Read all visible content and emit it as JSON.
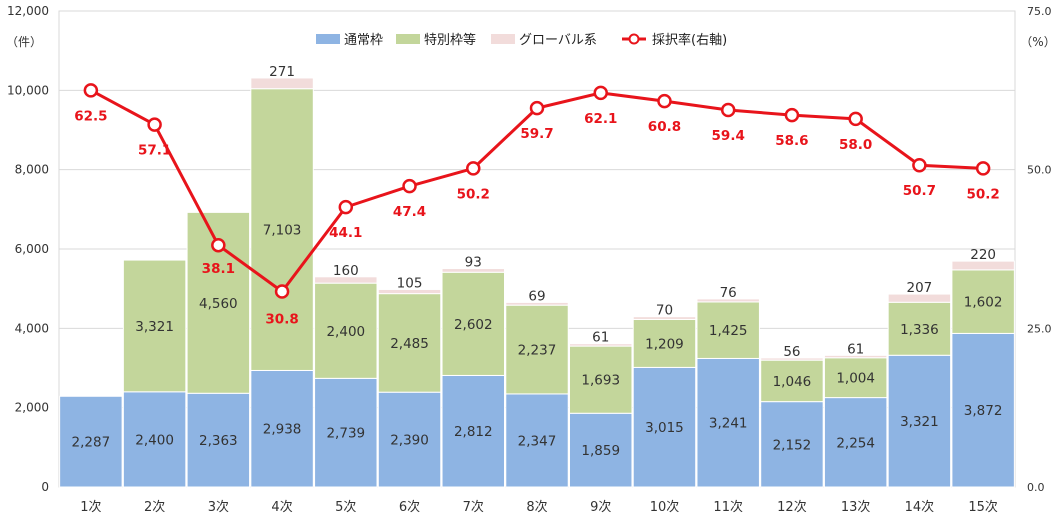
{
  "chart_data": {
    "type": "bar",
    "stacked": true,
    "categories": [
      "1次",
      "2次",
      "3次",
      "4次",
      "5次",
      "6次",
      "7次",
      "8次",
      "9次",
      "10次",
      "11次",
      "12次",
      "13次",
      "14次",
      "15次"
    ],
    "series": [
      {
        "name": "通常枠",
        "color": "#8eb4e3",
        "values": [
          2287,
          2400,
          2363,
          2938,
          2739,
          2390,
          2812,
          2347,
          1859,
          3015,
          3241,
          2152,
          2254,
          3321,
          3872
        ]
      },
      {
        "name": "特別枠等",
        "color": "#c3d69b",
        "values": [
          0,
          3321,
          4560,
          7103,
          2400,
          2485,
          2602,
          2237,
          1693,
          1209,
          1425,
          1046,
          1004,
          1336,
          1602
        ]
      },
      {
        "name": "グローバル系",
        "color": "#f2dcdb",
        "values": [
          0,
          0,
          0,
          271,
          160,
          105,
          93,
          69,
          61,
          70,
          76,
          56,
          61,
          207,
          220
        ]
      }
    ],
    "line_series": {
      "name": "採択率(右軸)",
      "color": "#e8141b",
      "axis": "right",
      "values": [
        62.5,
        57.1,
        38.1,
        30.8,
        44.1,
        47.4,
        50.2,
        59.7,
        62.1,
        60.8,
        59.4,
        58.6,
        58.0,
        50.7,
        50.2
      ]
    },
    "left_axis": {
      "unit": "（件）",
      "ylim": [
        0,
        12000
      ],
      "ticks": [
        "0",
        "2,000",
        "4,000",
        "6,000",
        "8,000",
        "10,000",
        "12,000"
      ]
    },
    "right_axis": {
      "unit": "（%）",
      "ylim": [
        0,
        75
      ],
      "ticks": [
        "0.0",
        "25.0",
        "50.0",
        "75.0"
      ]
    },
    "grid": true,
    "legend_position": "top-center"
  }
}
